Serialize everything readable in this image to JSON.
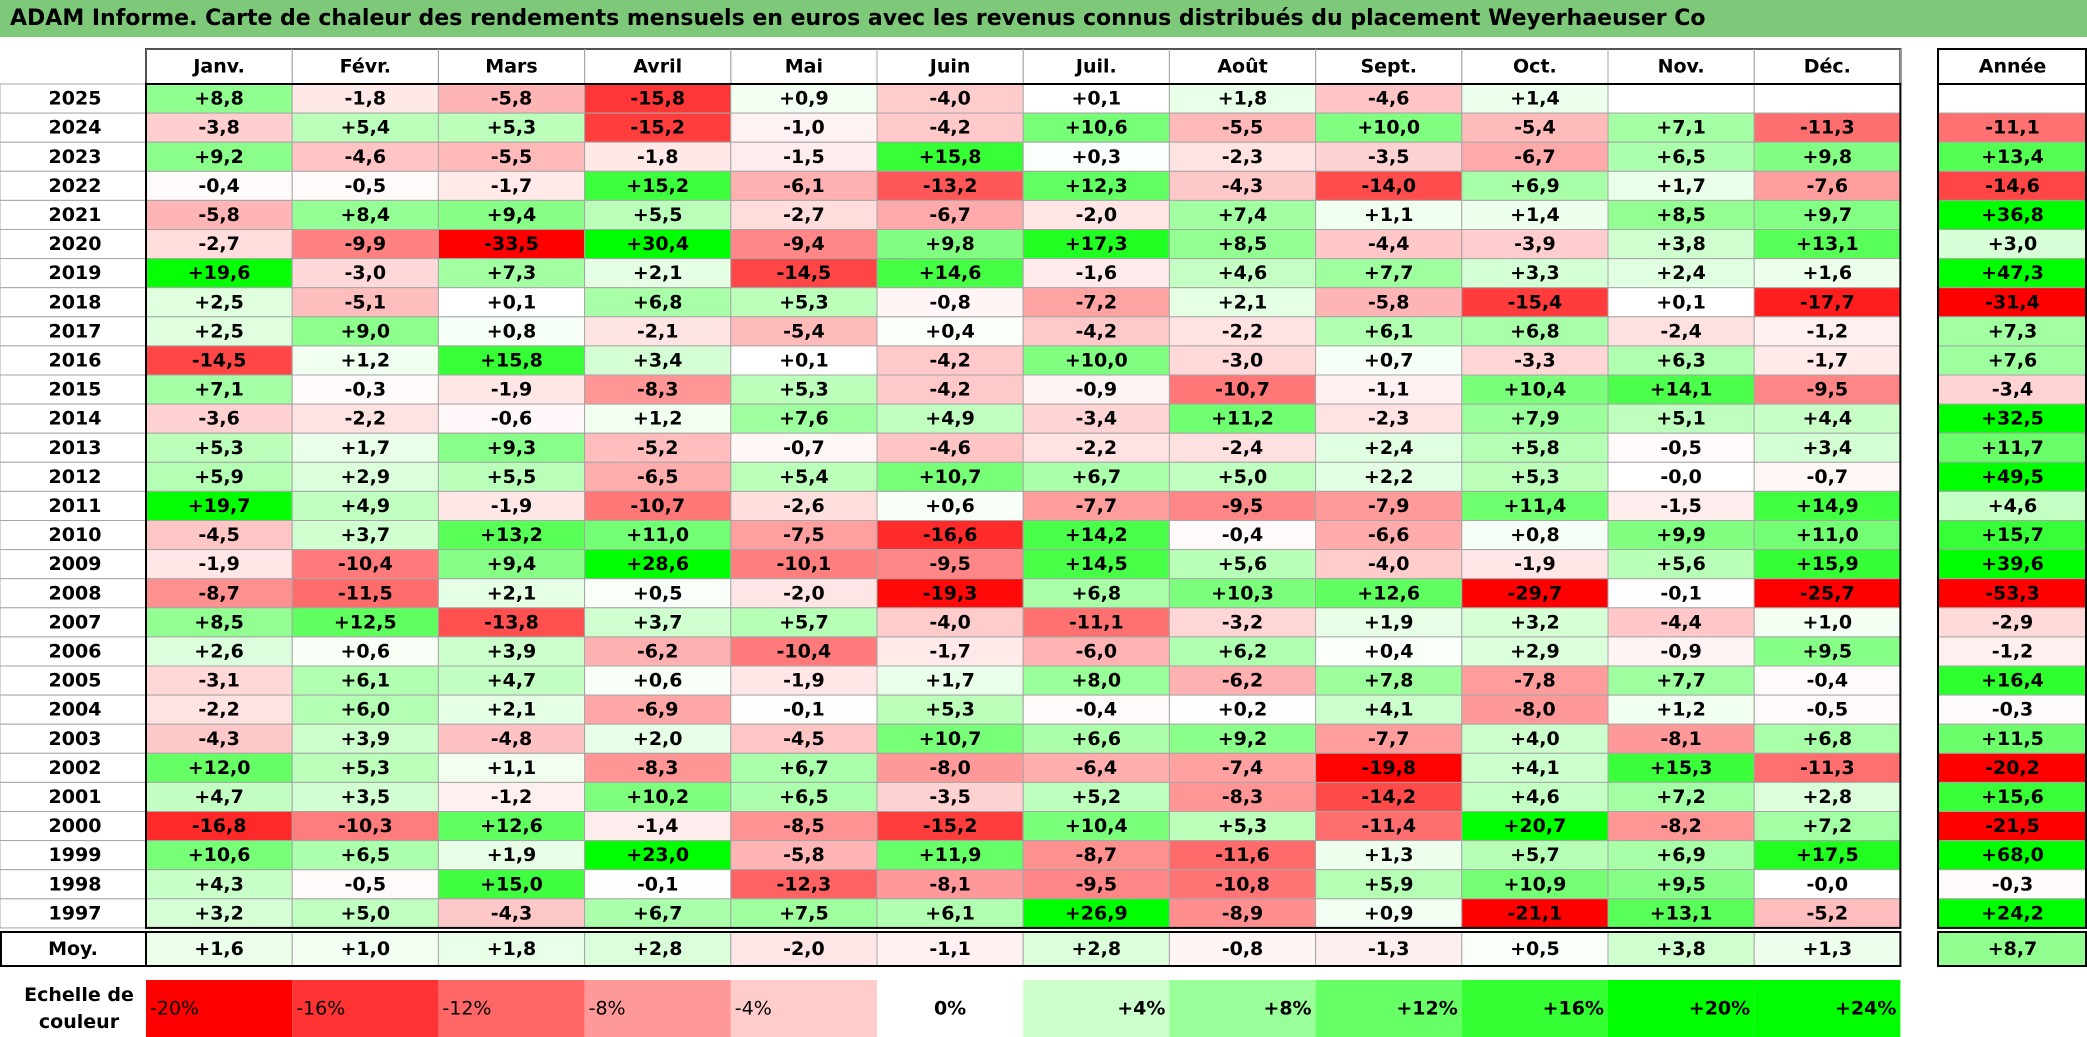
{
  "title": "ADAM Informe. Carte de chaleur des rendements mensuels en euros avec les revenus connus distribués du placement Weyerhaeuser Co",
  "chart_data": {
    "type": "heatmap",
    "title": "ADAM Informe. Carte de chaleur des rendements mensuels en euros avec les revenus connus distribués du placement Weyerhaeuser Co",
    "columns": [
      "Janv.",
      "Févr.",
      "Mars",
      "Avril",
      "Mai",
      "Juin",
      "Juil.",
      "Août",
      "Sept.",
      "Oct.",
      "Nov.",
      "Déc."
    ],
    "year_column_label": "Année",
    "rows": [
      {
        "year": "2025",
        "values": [
          "+8,8",
          "-1,8",
          "-5,8",
          "-15,8",
          "+0,9",
          "-4,0",
          "+0,1",
          "+1,8",
          "-4,6",
          "+1,4",
          "",
          ""
        ],
        "annual": ""
      },
      {
        "year": "2024",
        "values": [
          "-3,8",
          "+5,4",
          "+5,3",
          "-15,2",
          "-1,0",
          "-4,2",
          "+10,6",
          "-5,5",
          "+10,0",
          "-5,4",
          "+7,1",
          "-11,3"
        ],
        "annual": "-11,1"
      },
      {
        "year": "2023",
        "values": [
          "+9,2",
          "-4,6",
          "-5,5",
          "-1,8",
          "-1,5",
          "+15,8",
          "+0,3",
          "-2,3",
          "-3,5",
          "-6,7",
          "+6,5",
          "+9,8"
        ],
        "annual": "+13,4"
      },
      {
        "year": "2022",
        "values": [
          "-0,4",
          "-0,5",
          "-1,7",
          "+15,2",
          "-6,1",
          "-13,2",
          "+12,3",
          "-4,3",
          "-14,0",
          "+6,9",
          "+1,7",
          "-7,6"
        ],
        "annual": "-14,6"
      },
      {
        "year": "2021",
        "values": [
          "-5,8",
          "+8,4",
          "+9,4",
          "+5,5",
          "-2,7",
          "-6,7",
          "-2,0",
          "+7,4",
          "+1,1",
          "+1,4",
          "+8,5",
          "+9,7"
        ],
        "annual": "+36,8"
      },
      {
        "year": "2020",
        "values": [
          "-2,7",
          "-9,9",
          "-33,5",
          "+30,4",
          "-9,4",
          "+9,8",
          "+17,3",
          "+8,5",
          "-4,4",
          "-3,9",
          "+3,8",
          "+13,1"
        ],
        "annual": "+3,0"
      },
      {
        "year": "2019",
        "values": [
          "+19,6",
          "-3,0",
          "+7,3",
          "+2,1",
          "-14,5",
          "+14,6",
          "-1,6",
          "+4,6",
          "+7,7",
          "+3,3",
          "+2,4",
          "+1,6"
        ],
        "annual": "+47,3"
      },
      {
        "year": "2018",
        "values": [
          "+2,5",
          "-5,1",
          "+0,1",
          "+6,8",
          "+5,3",
          "-0,8",
          "-7,2",
          "+2,1",
          "-5,8",
          "-15,4",
          "+0,1",
          "-17,7"
        ],
        "annual": "-31,4"
      },
      {
        "year": "2017",
        "values": [
          "+2,5",
          "+9,0",
          "+0,8",
          "-2,1",
          "-5,4",
          "+0,4",
          "-4,2",
          "-2,2",
          "+6,1",
          "+6,8",
          "-2,4",
          "-1,2"
        ],
        "annual": "+7,3"
      },
      {
        "year": "2016",
        "values": [
          "-14,5",
          "+1,2",
          "+15,8",
          "+3,4",
          "+0,1",
          "-4,2",
          "+10,0",
          "-3,0",
          "+0,7",
          "-3,3",
          "+6,3",
          "-1,7"
        ],
        "annual": "+7,6"
      },
      {
        "year": "2015",
        "values": [
          "+7,1",
          "-0,3",
          "-1,9",
          "-8,3",
          "+5,3",
          "-4,2",
          "-0,9",
          "-10,7",
          "-1,1",
          "+10,4",
          "+14,1",
          "-9,5"
        ],
        "annual": "-3,4"
      },
      {
        "year": "2014",
        "values": [
          "-3,6",
          "-2,2",
          "-0,6",
          "+1,2",
          "+7,6",
          "+4,9",
          "-3,4",
          "+11,2",
          "-2,3",
          "+7,9",
          "+5,1",
          "+4,4"
        ],
        "annual": "+32,5"
      },
      {
        "year": "2013",
        "values": [
          "+5,3",
          "+1,7",
          "+9,3",
          "-5,2",
          "-0,7",
          "-4,6",
          "-2,2",
          "-2,4",
          "+2,4",
          "+5,8",
          "-0,5",
          "+3,4"
        ],
        "annual": "+11,7"
      },
      {
        "year": "2012",
        "values": [
          "+5,9",
          "+2,9",
          "+5,5",
          "-6,5",
          "+5,4",
          "+10,7",
          "+6,7",
          "+5,0",
          "+2,2",
          "+5,3",
          "-0,0",
          "-0,7"
        ],
        "annual": "+49,5"
      },
      {
        "year": "2011",
        "values": [
          "+19,7",
          "+4,9",
          "-1,9",
          "-10,7",
          "-2,6",
          "+0,6",
          "-7,7",
          "-9,5",
          "-7,9",
          "+11,4",
          "-1,5",
          "+14,9"
        ],
        "annual": "+4,6"
      },
      {
        "year": "2010",
        "values": [
          "-4,5",
          "+3,7",
          "+13,2",
          "+11,0",
          "-7,5",
          "-16,6",
          "+14,2",
          "-0,4",
          "-6,6",
          "+0,8",
          "+9,9",
          "+11,0"
        ],
        "annual": "+15,7"
      },
      {
        "year": "2009",
        "values": [
          "-1,9",
          "-10,4",
          "+9,4",
          "+28,6",
          "-10,1",
          "-9,5",
          "+14,5",
          "+5,6",
          "-4,0",
          "-1,9",
          "+5,6",
          "+15,9"
        ],
        "annual": "+39,6"
      },
      {
        "year": "2008",
        "values": [
          "-8,7",
          "-11,5",
          "+2,1",
          "+0,5",
          "-2,0",
          "-19,3",
          "+6,8",
          "+10,3",
          "+12,6",
          "-29,7",
          "-0,1",
          "-25,7"
        ],
        "annual": "-53,3"
      },
      {
        "year": "2007",
        "values": [
          "+8,5",
          "+12,5",
          "-13,8",
          "+3,7",
          "+5,7",
          "-4,0",
          "-11,1",
          "-3,2",
          "+1,9",
          "+3,2",
          "-4,4",
          "+1,0"
        ],
        "annual": "-2,9"
      },
      {
        "year": "2006",
        "values": [
          "+2,6",
          "+0,6",
          "+3,9",
          "-6,2",
          "-10,4",
          "-1,7",
          "-6,0",
          "+6,2",
          "+0,4",
          "+2,9",
          "-0,9",
          "+9,5"
        ],
        "annual": "-1,2"
      },
      {
        "year": "2005",
        "values": [
          "-3,1",
          "+6,1",
          "+4,7",
          "+0,6",
          "-1,9",
          "+1,7",
          "+8,0",
          "-6,2",
          "+7,8",
          "-7,8",
          "+7,7",
          "-0,4"
        ],
        "annual": "+16,4"
      },
      {
        "year": "2004",
        "values": [
          "-2,2",
          "+6,0",
          "+2,1",
          "-6,9",
          "-0,1",
          "+5,3",
          "-0,4",
          "+0,2",
          "+4,1",
          "-8,0",
          "+1,2",
          "-0,5"
        ],
        "annual": "-0,3"
      },
      {
        "year": "2003",
        "values": [
          "-4,3",
          "+3,9",
          "-4,8",
          "+2,0",
          "-4,5",
          "+10,7",
          "+6,6",
          "+9,2",
          "-7,7",
          "+4,0",
          "-8,1",
          "+6,8"
        ],
        "annual": "+11,5"
      },
      {
        "year": "2002",
        "values": [
          "+12,0",
          "+5,3",
          "+1,1",
          "-8,3",
          "+6,7",
          "-8,0",
          "-6,4",
          "-7,4",
          "-19,8",
          "+4,1",
          "+15,3",
          "-11,3"
        ],
        "annual": "-20,2"
      },
      {
        "year": "2001",
        "values": [
          "+4,7",
          "+3,5",
          "-1,2",
          "+10,2",
          "+6,5",
          "-3,5",
          "+5,2",
          "-8,3",
          "-14,2",
          "+4,6",
          "+7,2",
          "+2,8"
        ],
        "annual": "+15,6"
      },
      {
        "year": "2000",
        "values": [
          "-16,8",
          "-10,3",
          "+12,6",
          "-1,4",
          "-8,5",
          "-15,2",
          "+10,4",
          "+5,3",
          "-11,4",
          "+20,7",
          "-8,2",
          "+7,2"
        ],
        "annual": "-21,5"
      },
      {
        "year": "1999",
        "values": [
          "+10,6",
          "+6,5",
          "+1,9",
          "+23,0",
          "-5,8",
          "+11,9",
          "-8,7",
          "-11,6",
          "+1,3",
          "+5,7",
          "+6,9",
          "+17,5"
        ],
        "annual": "+68,0"
      },
      {
        "year": "1998",
        "values": [
          "+4,3",
          "-0,5",
          "+15,0",
          "-0,1",
          "-12,3",
          "-8,1",
          "-9,5",
          "-10,8",
          "+5,9",
          "+10,9",
          "+9,5",
          "-0,0"
        ],
        "annual": "-0,3"
      },
      {
        "year": "1997",
        "values": [
          "+3,2",
          "+5,0",
          "-4,3",
          "+6,7",
          "+7,5",
          "+6,1",
          "+26,9",
          "-8,9",
          "+0,9",
          "-21,1",
          "+13,1",
          "-5,2"
        ],
        "annual": "+24,2"
      }
    ],
    "average_row": {
      "label": "Moy.",
      "values": [
        "+1,6",
        "+1,0",
        "+1,8",
        "+2,8",
        "-2,0",
        "-1,1",
        "+2,8",
        "-0,8",
        "-1,3",
        "+0,5",
        "+3,8",
        "+1,3"
      ],
      "annual": "+8,7"
    },
    "scale_label": [
      "Echelle de",
      "couleur"
    ],
    "scale": [
      {
        "label": "-20%",
        "value": -20,
        "color": "#ff0000"
      },
      {
        "label": "-16%",
        "value": -16,
        "color": "#ff3333"
      },
      {
        "label": "-12%",
        "value": -12,
        "color": "#ff6666"
      },
      {
        "label": "-8%",
        "value": -8,
        "color": "#ff9999"
      },
      {
        "label": "-4%",
        "value": -4,
        "color": "#ffcccc"
      },
      {
        "label": "0%",
        "value": 0,
        "color": "#ffffff"
      },
      {
        "label": "+4%",
        "value": 4,
        "color": "#ccffcc"
      },
      {
        "label": "+8%",
        "value": 8,
        "color": "#99ff99"
      },
      {
        "label": "+12%",
        "value": 12,
        "color": "#66ff66"
      },
      {
        "label": "+16%",
        "value": 16,
        "color": "#33ff33"
      },
      {
        "label": "+20%",
        "value": 20,
        "color": "#00ff00"
      },
      {
        "label": "+24%",
        "value": 24,
        "color": "#00ee00"
      }
    ],
    "colors": {
      "title_bar": "#7ec87a",
      "negative": "#ff0000",
      "neutral": "#ffffff",
      "positive": "#00ff00"
    }
  }
}
